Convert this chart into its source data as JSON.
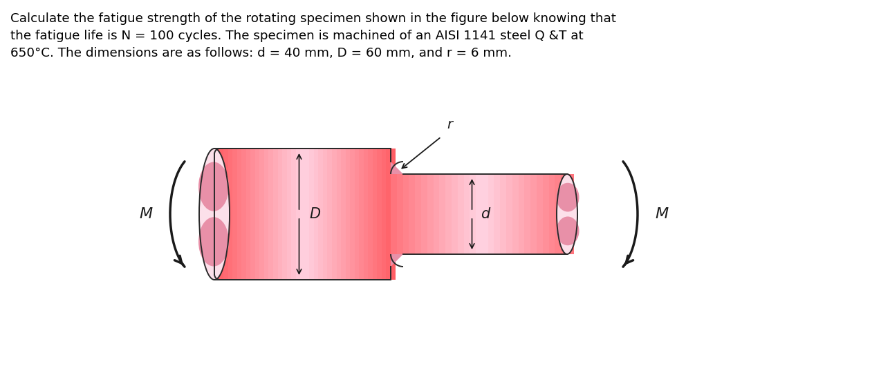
{
  "title_text": "Calculate the fatigue strength of the rotating specimen shown in the figure below knowing that\nthe fatigue life is N = 100 cycles. The specimen is machined of an AISI 1141 steel Q &T at\n650°C. The dimensions are as follows: d = 40 mm, D = 60 mm, and r = 6 mm.",
  "title_fontsize": 13.2,
  "title_color": "#000000",
  "background_color": "#ffffff",
  "pink_body": "#f5b8cc",
  "pink_light": "#fce0ea",
  "pink_dark": "#e890a8",
  "pink_end": "#f8ccd8",
  "label_D": "D",
  "label_d": "d",
  "label_M": "M",
  "label_r": "r",
  "fig_width": 12.87,
  "fig_height": 5.4
}
